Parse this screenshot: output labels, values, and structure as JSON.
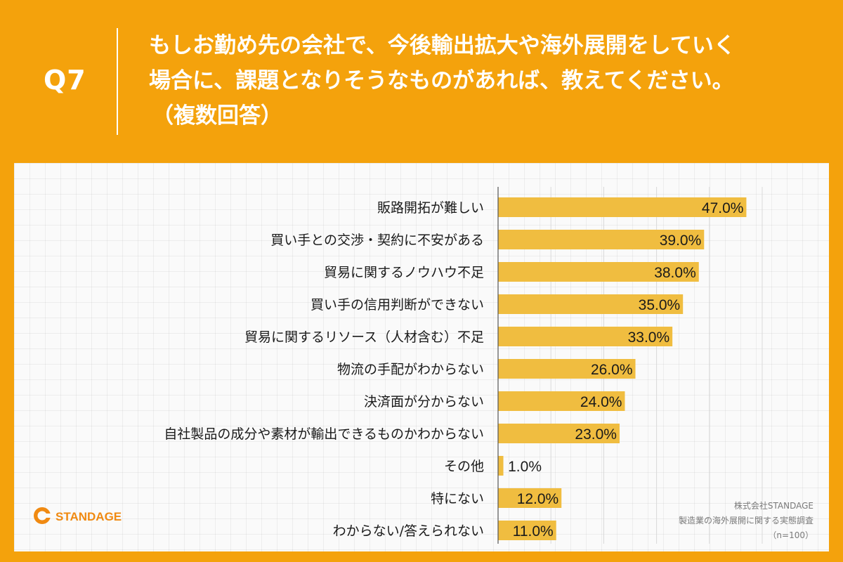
{
  "header": {
    "question_number": "Q7",
    "question_lines": [
      "もしお勤め先の会社で、今後輸出拡大や海外展開をしていく",
      "場合に、課題となりそうなものがあれば、教えてください。",
      "（複数回答）"
    ]
  },
  "chart_data": {
    "type": "bar",
    "orientation": "horizontal",
    "categories": [
      "販路開拓が難しい",
      "買い手との交渉・契約に不安がある",
      "貿易に関するノウハウ不足",
      "買い手の信用判断ができない",
      "貿易に関するリソース（人材含む）不足",
      "物流の手配がわからない",
      "決済面が分からない",
      "自社製品の成分や素材が輸出できるものかわからない",
      "その他",
      "特にない",
      "わからない/答えられない"
    ],
    "values": [
      47.0,
      39.0,
      38.0,
      35.0,
      33.0,
      26.0,
      24.0,
      23.0,
      1.0,
      12.0,
      11.0
    ],
    "value_labels": [
      "47.0%",
      "39.0%",
      "38.0%",
      "35.0%",
      "33.0%",
      "26.0%",
      "24.0%",
      "23.0%",
      "1.0%",
      "12.0%",
      "11.0%"
    ],
    "xlim": [
      0,
      50
    ],
    "grid": true,
    "bar_color": "#f0bd40"
  },
  "logo": {
    "text": "STANDAGE"
  },
  "source": {
    "company": "株式会社STANDAGE",
    "survey": "製造業の海外展開に関する実態調査",
    "sample": "（n=100）"
  }
}
